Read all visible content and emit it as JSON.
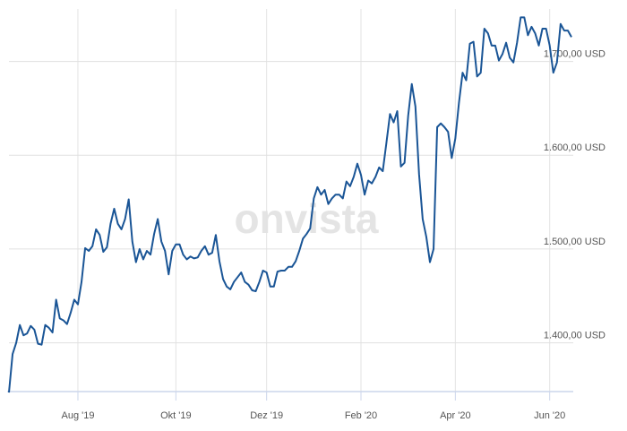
{
  "chart_data": {
    "type": "line",
    "watermark": "onvista",
    "categories": [
      null,
      null,
      null,
      null,
      null,
      null,
      null,
      null,
      null,
      null,
      null,
      null,
      null,
      null,
      null,
      null,
      null,
      null,
      null,
      "Aug '19",
      null,
      null,
      null,
      null,
      null,
      null,
      null,
      null,
      null,
      null,
      null,
      null,
      null,
      null,
      null,
      null,
      null,
      null,
      null,
      null,
      null,
      null,
      null,
      null,
      null,
      null,
      "Okt '19",
      null,
      null,
      null,
      null,
      null,
      null,
      null,
      null,
      null,
      null,
      null,
      null,
      null,
      null,
      null,
      null,
      null,
      null,
      null,
      null,
      null,
      null,
      null,
      null,
      "Dez '19",
      null,
      null,
      null,
      null,
      null,
      null,
      null,
      null,
      null,
      null,
      null,
      null,
      null,
      null,
      null,
      null,
      null,
      null,
      null,
      null,
      null,
      null,
      null,
      null,
      null,
      "Feb '20",
      null,
      null,
      null,
      null,
      null,
      null,
      null,
      null,
      null,
      null,
      null,
      null,
      null,
      null,
      null,
      null,
      null,
      null,
      null,
      null,
      null,
      null,
      null,
      null,
      null,
      "Apr '20",
      null,
      null,
      null,
      null,
      null,
      null,
      null,
      null,
      null,
      null,
      null,
      null,
      null,
      null,
      null,
      null,
      null,
      null,
      null,
      null,
      null,
      null,
      null,
      null,
      null,
      "Jun '20",
      null,
      null,
      null,
      null,
      null,
      null
    ],
    "series": [
      {
        "color": "#1a5596",
        "values": [
          1347,
          1388,
          1400,
          1419,
          1408,
          1410,
          1418,
          1414,
          1399,
          1398,
          1419,
          1416,
          1411,
          1446,
          1426,
          1424,
          1420,
          1432,
          1446,
          1441,
          1465,
          1501,
          1498,
          1503,
          1521,
          1515,
          1497,
          1502,
          1527,
          1543,
          1527,
          1521,
          1532,
          1553,
          1508,
          1486,
          1500,
          1489,
          1498,
          1494,
          1516,
          1532,
          1508,
          1498,
          1473,
          1498,
          1505,
          1505,
          1494,
          1489,
          1492,
          1490,
          1491,
          1498,
          1503,
          1494,
          1496,
          1515,
          1487,
          1468,
          1460,
          1457,
          1465,
          1470,
          1475,
          1465,
          1462,
          1456,
          1455,
          1465,
          1477,
          1475,
          1460,
          1460,
          1476,
          1477,
          1477,
          1481,
          1481,
          1487,
          1498,
          1511,
          1516,
          1522,
          1554,
          1566,
          1558,
          1563,
          1548,
          1554,
          1558,
          1558,
          1554,
          1572,
          1567,
          1577,
          1591,
          1579,
          1558,
          1573,
          1570,
          1577,
          1587,
          1583,
          1613,
          1644,
          1635,
          1647,
          1588,
          1592,
          1642,
          1676,
          1652,
          1580,
          1532,
          1513,
          1486,
          1500,
          1630,
          1634,
          1630,
          1625,
          1597,
          1618,
          1656,
          1688,
          1680,
          1719,
          1721,
          1684,
          1688,
          1735,
          1730,
          1717,
          1717,
          1701,
          1708,
          1720,
          1704,
          1699,
          1720,
          1747,
          1747,
          1728,
          1737,
          1730,
          1717,
          1735,
          1735,
          1717,
          1688,
          1699,
          1740,
          1733,
          1733,
          1726
        ]
      }
    ],
    "ylim": [
      1348,
      1756
    ],
    "yticks": [
      {
        "value": 1400,
        "label": "1.400,00 USD"
      },
      {
        "value": 1500,
        "label": "1.500,00 USD"
      },
      {
        "value": 1600,
        "label": "1.600,00 USD"
      },
      {
        "value": 1700,
        "label": "1.700,00 USD"
      }
    ],
    "grid": true
  }
}
